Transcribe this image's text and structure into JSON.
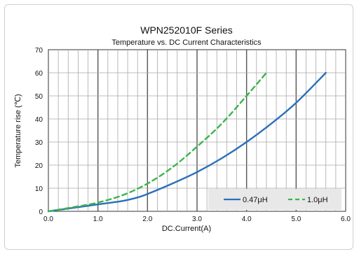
{
  "chart_data": {
    "type": "line",
    "title": "WPN252010F Series",
    "subtitle": "Temperature vs. DC Current Characteristics",
    "xlabel": "DC.Current(A)",
    "ylabel": "Temperature rise (℃)",
    "xlim": [
      0,
      6
    ],
    "ylim": [
      0,
      70
    ],
    "x_ticks": [
      "0.0",
      "1.0",
      "2.0",
      "3.0",
      "4.0",
      "5.0",
      "6.0"
    ],
    "y_ticks": [
      "0",
      "10",
      "20",
      "30",
      "40",
      "50",
      "60",
      "70"
    ],
    "grid": true,
    "legend_position": "bottom-right",
    "series": [
      {
        "name": "0.47μH",
        "style": "solid",
        "color": "#2a6fba",
        "x": [
          0,
          0.5,
          1.0,
          1.5,
          1.8,
          2.0,
          2.5,
          3.0,
          3.5,
          4.0,
          4.5,
          5.0,
          5.6
        ],
        "y": [
          0,
          1.5,
          3,
          4.5,
          6,
          7.5,
          12,
          17,
          23,
          30,
          38,
          47,
          60
        ]
      },
      {
        "name": "1.0μH",
        "style": "dashed",
        "color": "#3bb54a",
        "x": [
          0,
          0.5,
          1.0,
          1.5,
          2.0,
          2.5,
          3.0,
          3.5,
          4.0,
          4.4
        ],
        "y": [
          0,
          1.8,
          3.8,
          7,
          12,
          19,
          28,
          38,
          50,
          60
        ]
      }
    ]
  }
}
